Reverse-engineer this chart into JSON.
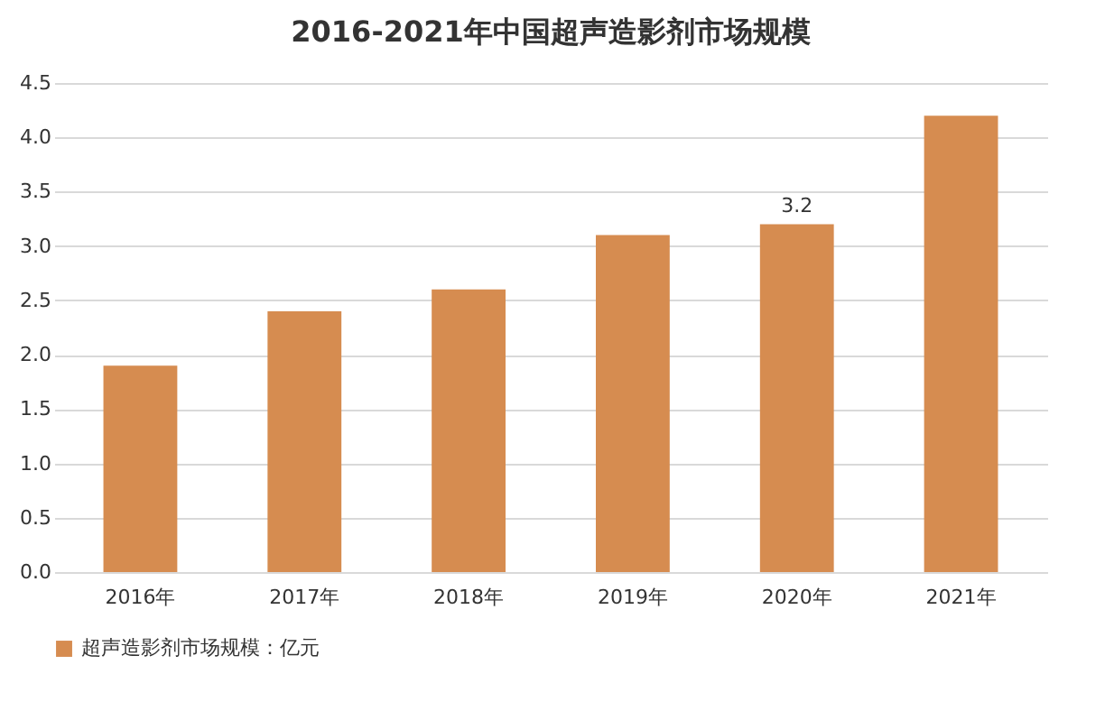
{
  "chart_data": {
    "type": "bar",
    "title": "2016-2021年中国超声造影剂市场规模",
    "categories": [
      "2016年",
      "2017年",
      "2018年",
      "2019年",
      "2020年",
      "2021年"
    ],
    "series": [
      {
        "name": "超声造影剂市场规模：亿元",
        "color": "#d68c50",
        "values": [
          1.9,
          2.4,
          2.6,
          3.1,
          3.2,
          4.2
        ],
        "value_labels": [
          null,
          null,
          null,
          null,
          "3.2",
          null
        ]
      }
    ],
    "ylim": [
      0,
      4.5
    ],
    "yticks": [
      {
        "value": 0,
        "label": "0.0"
      },
      {
        "value": 0.5,
        "label": "0.5"
      },
      {
        "value": 1,
        "label": "1.0"
      },
      {
        "value": 1.5,
        "label": "1.5"
      },
      {
        "value": 2,
        "label": "2.0"
      },
      {
        "value": 2.5,
        "label": "2.5"
      },
      {
        "value": 3,
        "label": "3.0"
      },
      {
        "value": 3.5,
        "label": "3.5"
      },
      {
        "value": 4,
        "label": "4.0"
      },
      {
        "value": 4.5,
        "label": "4.5"
      }
    ],
    "grid": "y",
    "legend": "bottom"
  }
}
